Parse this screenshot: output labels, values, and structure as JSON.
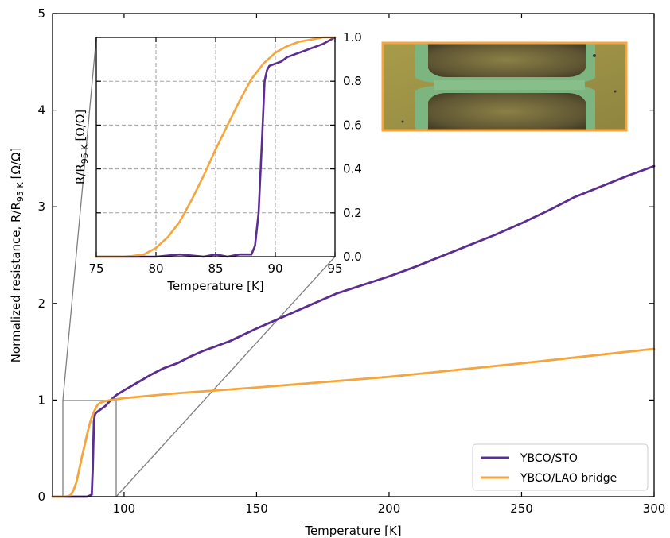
{
  "colors": {
    "ybco_sto": "#5b2d91",
    "ybco_lao": "#f5a53b",
    "photo_border": "#f5a53b",
    "photo_bg": "#9c9142",
    "photo_green": "#7bb37f",
    "photo_dark": "#4d4529"
  },
  "chart_data": [
    {
      "type": "line",
      "xlabel": "Temperature [K]",
      "ylabel_main": "Normalized resistance, R/R",
      "ylabel_sub": "95 K",
      "ylabel_unit": "[Ω/Ω]",
      "xlim": [
        73,
        300
      ],
      "ylim": [
        0,
        5
      ],
      "xticks": [
        100,
        150,
        200,
        250,
        300
      ],
      "yticks": [
        0,
        1,
        2,
        3,
        4,
        5
      ],
      "legend": {
        "position": "lower-right",
        "entries": [
          "YBCO/STO",
          "YBCO/LAO bridge"
        ]
      },
      "series": [
        {
          "name": "YBCO/STO",
          "color": "#5b2d91",
          "x": [
            73,
            80,
            86,
            87.8,
            88.2,
            88.6,
            89,
            89.5,
            90,
            91,
            92,
            93,
            94,
            95,
            97,
            100,
            105,
            110,
            115,
            120,
            125,
            130,
            135,
            140,
            150,
            160,
            170,
            180,
            190,
            200,
            210,
            220,
            230,
            240,
            250,
            260,
            270,
            280,
            290,
            300
          ],
          "y": [
            0,
            0,
            0,
            0.02,
            0.3,
            0.78,
            0.85,
            0.87,
            0.88,
            0.9,
            0.92,
            0.94,
            0.97,
            1.0,
            1.05,
            1.1,
            1.18,
            1.26,
            1.33,
            1.38,
            1.45,
            1.51,
            1.56,
            1.61,
            1.74,
            1.86,
            1.98,
            2.1,
            2.19,
            2.28,
            2.38,
            2.49,
            2.6,
            2.71,
            2.83,
            2.96,
            3.1,
            3.21,
            3.32,
            3.42
          ]
        },
        {
          "name": "YBCO/LAO bridge",
          "color": "#f5a53b",
          "x": [
            73,
            77,
            79,
            80,
            81,
            82,
            83,
            84,
            85,
            86,
            87,
            88,
            89,
            90,
            91,
            93,
            95,
            100,
            120,
            150,
            200,
            250,
            300
          ],
          "y": [
            0,
            0,
            0.005,
            0.02,
            0.07,
            0.15,
            0.27,
            0.4,
            0.52,
            0.64,
            0.75,
            0.84,
            0.9,
            0.95,
            0.97,
            0.99,
            1.0,
            1.02,
            1.07,
            1.13,
            1.24,
            1.38,
            1.53
          ]
        }
      ]
    },
    {
      "type": "line",
      "inset": true,
      "xlabel": "Temperature [K]",
      "ylabel_main": "R/R",
      "ylabel_sub": "95 K",
      "ylabel_unit": "[Ω/Ω]",
      "xlim": [
        75,
        95
      ],
      "ylim": [
        0,
        1
      ],
      "xticks": [
        75,
        80,
        85,
        90,
        95
      ],
      "yticks": [
        0.0,
        0.2,
        0.4,
        0.6,
        0.8,
        1.0
      ],
      "ytick_labels": [
        "0.0",
        "0.2",
        "0.4",
        "0.6",
        "0.8",
        "1.0"
      ],
      "grid": true,
      "series": [
        {
          "name": "YBCO/STO",
          "color": "#5b2d91",
          "x": [
            75,
            80,
            82,
            84,
            85,
            86,
            87,
            88,
            88.3,
            88.6,
            88.9,
            89.1,
            89.3,
            89.5,
            90,
            90.5,
            91,
            92,
            93,
            94,
            95
          ],
          "y": [
            0,
            0,
            0.01,
            0,
            0.01,
            0,
            0.01,
            0.01,
            0.05,
            0.2,
            0.55,
            0.8,
            0.85,
            0.87,
            0.88,
            0.89,
            0.91,
            0.93,
            0.95,
            0.97,
            1.0
          ]
        },
        {
          "name": "YBCO/LAO bridge",
          "color": "#f5a53b",
          "x": [
            75,
            77,
            78,
            79,
            80,
            81,
            82,
            83,
            84,
            85,
            86,
            87,
            88,
            89,
            90,
            91,
            92,
            93,
            94,
            95
          ],
          "y": [
            0,
            0,
            0.003,
            0.01,
            0.04,
            0.09,
            0.16,
            0.26,
            0.37,
            0.49,
            0.6,
            0.71,
            0.81,
            0.88,
            0.93,
            0.96,
            0.98,
            0.99,
            1.0,
            1.0
          ]
        }
      ]
    }
  ]
}
